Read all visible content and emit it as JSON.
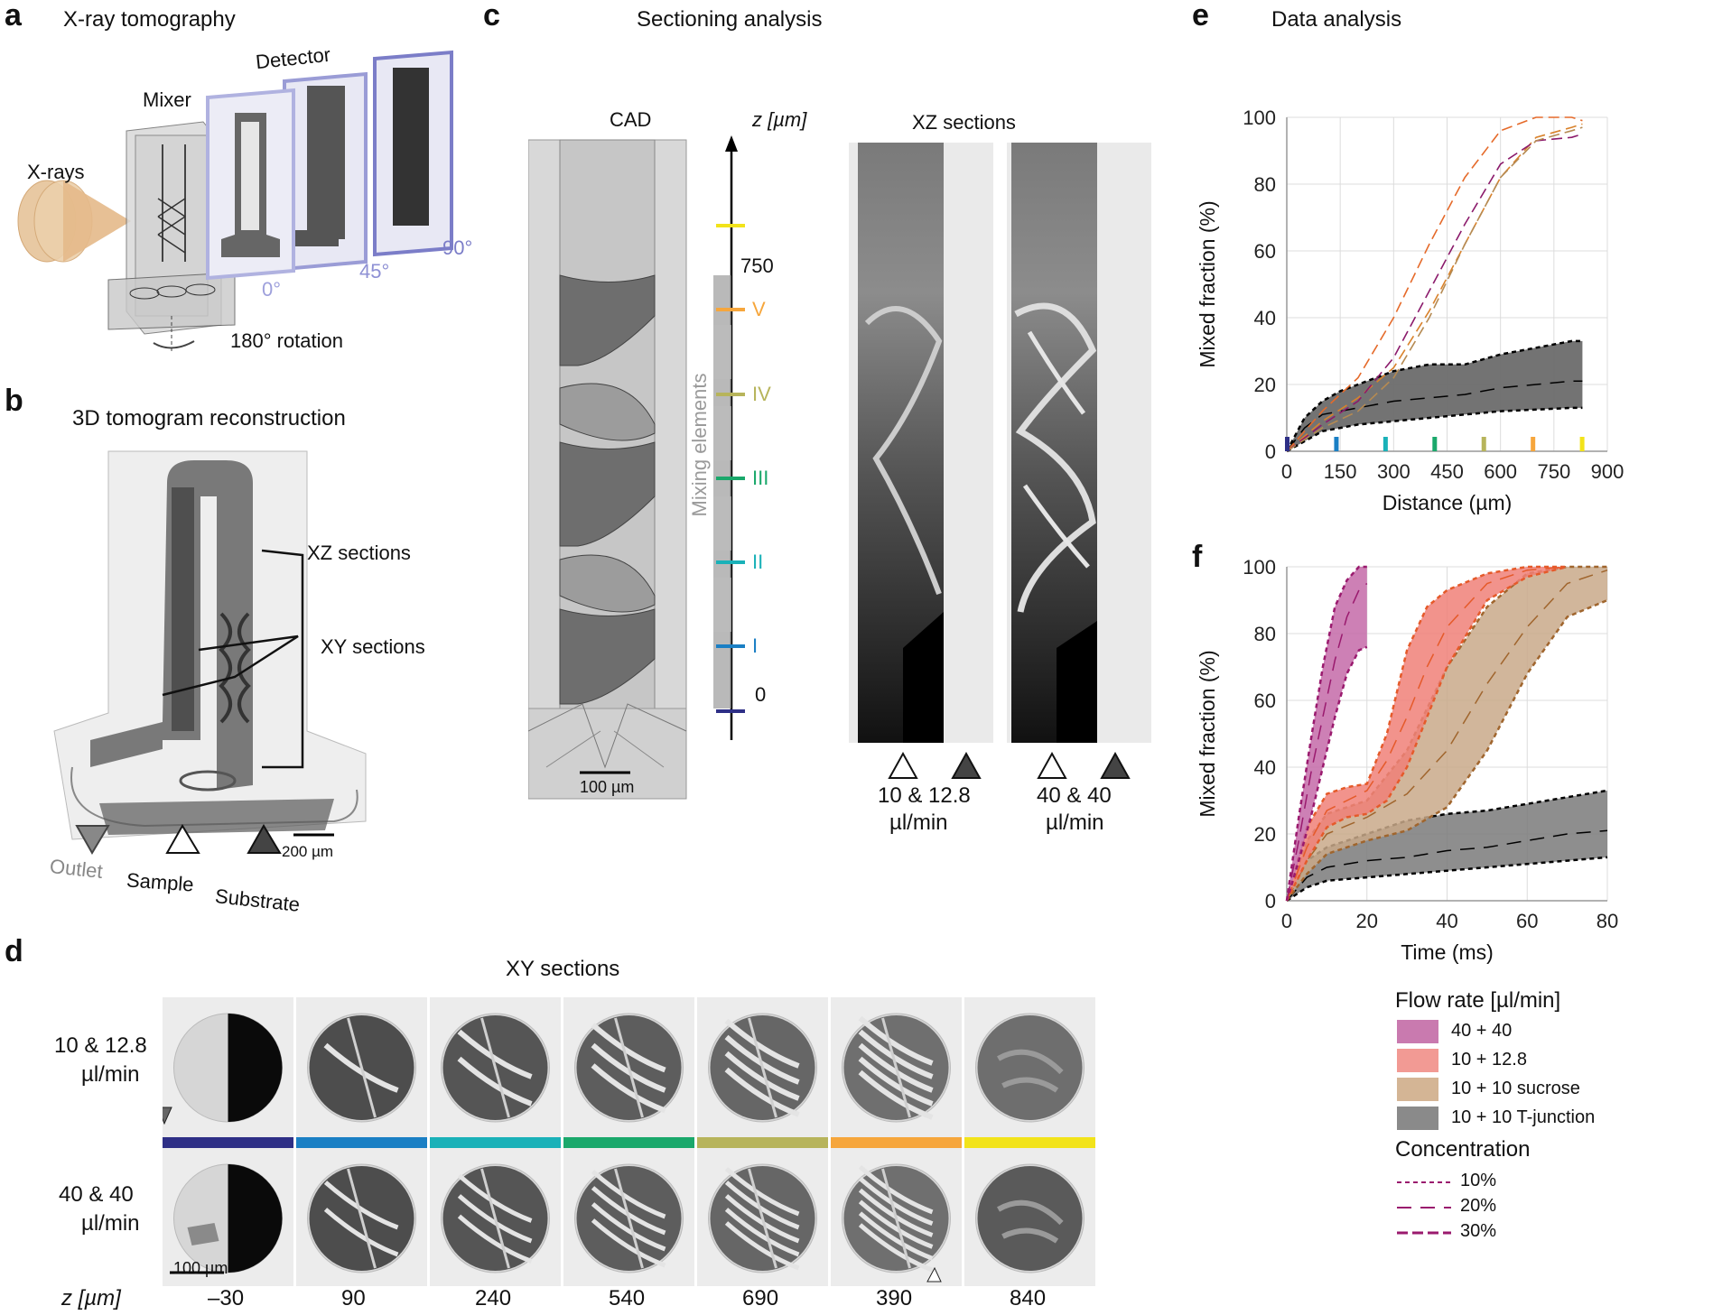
{
  "panels": {
    "a": {
      "letter": "a",
      "title": "X-ray tomography",
      "xrays": "X-rays",
      "mixer": "Mixer",
      "detector": "Detector",
      "angles": [
        "0°",
        "45°",
        "90°"
      ],
      "rotation": "180° rotation"
    },
    "b": {
      "letter": "b",
      "title": "3D tomogram reconstruction",
      "xz": "XZ sections",
      "xy": "XY sections",
      "scale": "200 µm",
      "outlet": "Outlet",
      "sample": "Sample",
      "substrate": "Substrate"
    },
    "c": {
      "letter": "c",
      "title": "Sectioning analysis",
      "cad": "CAD",
      "z_axis": "z [µm]",
      "z_750": "750",
      "z_0": "0",
      "mixing_elements": "Mixing elements",
      "romans": [
        "V",
        "IV",
        "III",
        "II",
        "I"
      ],
      "scale": "100 µm",
      "xz_title": "XZ sections",
      "flow1_line1": "10 & 12.8",
      "flow1_line2": "µl/min",
      "flow2_line1": "40 & 40",
      "flow2_line2": "µl/min"
    },
    "d": {
      "letter": "d",
      "title": "XY sections",
      "row1_line1": "10 & 12.8",
      "row1_line2": "µl/min",
      "row2_line1": "40 & 40",
      "row2_line2": "µl/min",
      "scale": "100 µm",
      "z_label": "z [µm]",
      "z_values": [
        "–30",
        "90",
        "240",
        "540",
        "690",
        "390",
        "840"
      ],
      "bar_colors": [
        "#2e2f86",
        "#1a7fc4",
        "#1ab1b8",
        "#1aa86b",
        "#b7b45b",
        "#f6a63c",
        "#f2e31a"
      ]
    },
    "e": {
      "letter": "e",
      "title": "Data analysis"
    },
    "f": {
      "letter": "f"
    }
  },
  "chart_data": [
    {
      "type": "line",
      "id": "e",
      "title": "Data analysis",
      "xlabel": "Distance (µm)",
      "ylabel": "Mixed fraction (%)",
      "xlim": [
        0,
        900
      ],
      "ylim": [
        0,
        100
      ],
      "xticks": [
        0,
        150,
        300,
        450,
        600,
        750,
        900
      ],
      "yticks": [
        0,
        20,
        40,
        60,
        80,
        100
      ],
      "grid": true,
      "band": {
        "name": "10 + 10 T-junction",
        "color": "#6b6b6b",
        "x": [
          0,
          50,
          100,
          150,
          200,
          300,
          400,
          500,
          600,
          700,
          800,
          830
        ],
        "lower": [
          0,
          3,
          6,
          7,
          8,
          9,
          10,
          11,
          12,
          12.5,
          13,
          13
        ],
        "mid": [
          0,
          7,
          11,
          12,
          13,
          15,
          16,
          17,
          19,
          20,
          21,
          21
        ],
        "upper": [
          0,
          10,
          15,
          18,
          20,
          24,
          26,
          26,
          29,
          31,
          33,
          33
        ]
      },
      "dashed_series": [
        {
          "name": "orange upper",
          "color": "#e56a2a",
          "x": [
            0,
            100,
            200,
            300,
            400,
            500,
            600,
            700,
            800,
            830
          ],
          "y": [
            0,
            12,
            22,
            40,
            62,
            82,
            96,
            100,
            100,
            99
          ]
        },
        {
          "name": "orange lower",
          "color": "#d9822b",
          "x": [
            0,
            100,
            200,
            300,
            400,
            500,
            600,
            700,
            800,
            830
          ],
          "y": [
            0,
            9,
            16,
            25,
            42,
            62,
            82,
            94,
            97,
            98
          ]
        },
        {
          "name": "purple",
          "color": "#8b1a6b",
          "x": [
            0,
            100,
            200,
            300,
            400,
            500,
            600,
            700,
            800,
            830
          ],
          "y": [
            0,
            8,
            15,
            28,
            48,
            68,
            86,
            93,
            94,
            95
          ]
        },
        {
          "name": "tan",
          "color": "#b58a52",
          "x": [
            0,
            100,
            200,
            300,
            400,
            500,
            600,
            700,
            800,
            830
          ],
          "y": [
            0,
            7,
            12,
            22,
            40,
            62,
            82,
            93,
            96,
            97
          ]
        }
      ],
      "markers": [
        {
          "x": 0,
          "color": "#2e2f86"
        },
        {
          "x": 138,
          "color": "#1a7fc4"
        },
        {
          "x": 276,
          "color": "#1ab1b8"
        },
        {
          "x": 414,
          "color": "#1aa86b"
        },
        {
          "x": 552,
          "color": "#b7b45b"
        },
        {
          "x": 690,
          "color": "#f6a63c"
        },
        {
          "x": 828,
          "color": "#f2e31a"
        }
      ]
    },
    {
      "type": "area",
      "id": "f",
      "xlabel": "Time (ms)",
      "ylabel": "Mixed fraction (%)",
      "xlim": [
        0,
        80
      ],
      "ylim": [
        0,
        100
      ],
      "xticks": [
        0,
        20,
        40,
        60,
        80
      ],
      "yticks": [
        0,
        20,
        40,
        60,
        80,
        100
      ],
      "grid": true,
      "series": [
        {
          "name": "10 + 10 T-junction",
          "fill": "#7a7a7a",
          "edge": "#000000",
          "x": [
            0,
            5,
            10,
            20,
            30,
            40,
            50,
            60,
            70,
            80
          ],
          "lower": [
            0,
            4,
            6,
            7,
            8,
            9,
            10,
            11,
            12,
            13
          ],
          "mid": [
            0,
            7,
            10,
            12,
            13,
            15,
            16,
            18,
            20,
            21
          ],
          "upper": [
            0,
            12,
            16,
            20,
            24,
            26,
            27,
            29,
            31,
            33
          ]
        },
        {
          "name": "10 + 10 sucrose",
          "fill": "#c9a98a",
          "edge": "#a0652d",
          "x": [
            0,
            5,
            10,
            20,
            30,
            40,
            50,
            60,
            70,
            80
          ],
          "lower": [
            0,
            8,
            14,
            18,
            21,
            28,
            45,
            68,
            85,
            90
          ],
          "mid": [
            0,
            12,
            20,
            25,
            32,
            45,
            65,
            82,
            95,
            99
          ],
          "upper": [
            0,
            18,
            26,
            30,
            45,
            70,
            88,
            98,
            100,
            100
          ]
        },
        {
          "name": "10 + 12.8",
          "fill": "#f08078",
          "edge": "#e55a2a",
          "x": [
            0,
            5,
            10,
            15,
            20,
            25,
            30,
            35,
            40,
            50,
            60,
            70
          ],
          "lower": [
            0,
            12,
            22,
            25,
            26,
            30,
            40,
            55,
            70,
            90,
            97,
            100
          ],
          "mid": [
            0,
            16,
            27,
            30,
            33,
            42,
            55,
            70,
            82,
            95,
            99,
            100
          ],
          "upper": [
            0,
            22,
            32,
            34,
            35,
            50,
            75,
            88,
            93,
            98,
            100,
            100
          ]
        },
        {
          "name": "40 + 40",
          "fill": "#c46aa8",
          "edge": "#9a1a6e",
          "x": [
            0,
            3,
            6,
            9,
            12,
            15,
            18,
            20
          ],
          "lower": [
            0,
            12,
            25,
            40,
            55,
            68,
            75,
            76
          ],
          "mid": [
            0,
            18,
            38,
            55,
            72,
            85,
            93,
            95
          ],
          "upper": [
            0,
            25,
            48,
            70,
            88,
            96,
            100,
            100
          ]
        }
      ],
      "legend_title": "Flow rate [µl/min]",
      "legend": [
        {
          "label": "40 + 40",
          "color": "#c97aaf"
        },
        {
          "label": "10 + 12.8",
          "color": "#f29a94"
        },
        {
          "label": "10 + 10 sucrose",
          "color": "#d4b595"
        },
        {
          "label": "10 + 10 T-junction",
          "color": "#8a8a8a"
        }
      ],
      "concentration_title": "Concentration",
      "concentration": [
        {
          "label": "10%",
          "dash": "5,4"
        },
        {
          "label": "20%",
          "dash": "16,10"
        },
        {
          "label": "30%",
          "dash": "12,5"
        }
      ]
    }
  ]
}
